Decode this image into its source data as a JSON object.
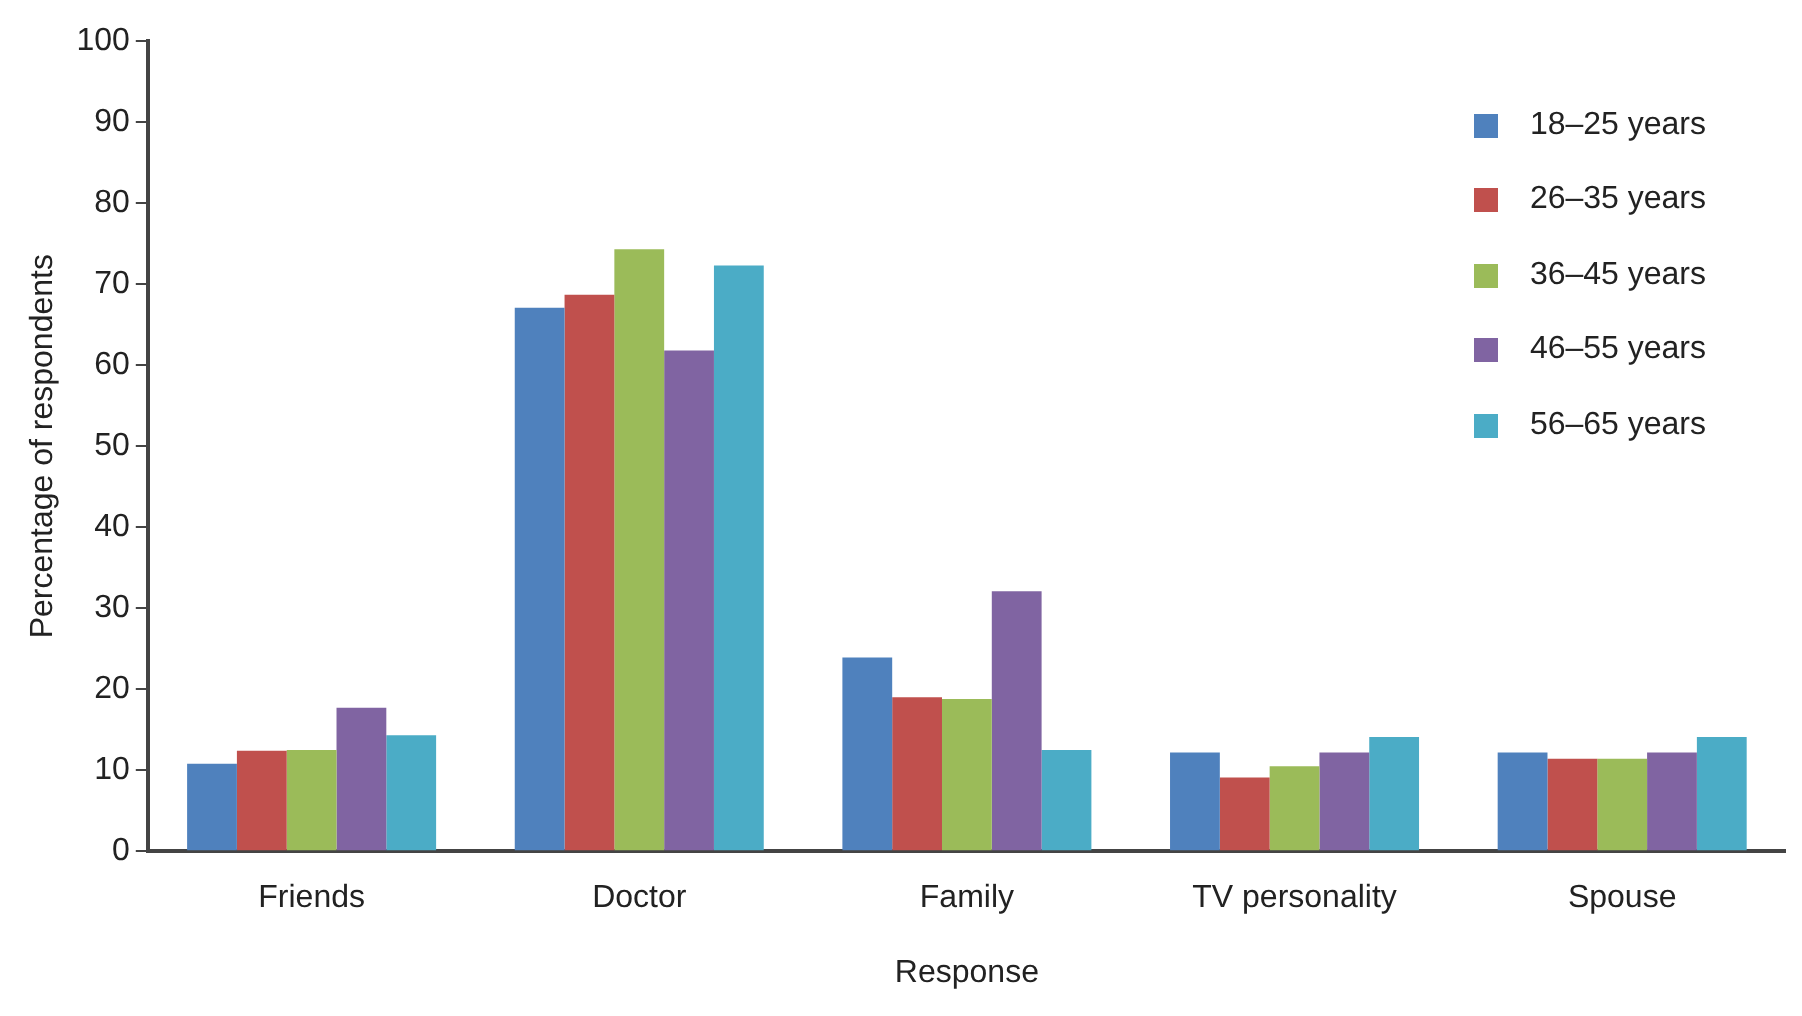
{
  "chart_data": {
    "type": "bar",
    "xlabel": "Response",
    "ylabel": "Percentage of respondents",
    "categories": [
      "Friends",
      "Doctor",
      "Family",
      "TV personality",
      "Spouse"
    ],
    "series": [
      {
        "name": "18–25 years",
        "color": "#4f81bd",
        "values": [
          10.8,
          67.1,
          23.9,
          12.2,
          12.2
        ]
      },
      {
        "name": "26–35 years",
        "color": "#c0504d",
        "values": [
          12.4,
          68.7,
          19.0,
          9.1,
          11.4
        ]
      },
      {
        "name": "36–45 years",
        "color": "#9bbb59",
        "values": [
          12.5,
          74.3,
          18.8,
          10.5,
          11.4
        ]
      },
      {
        "name": "46–55 years",
        "color": "#8064a2",
        "values": [
          17.7,
          61.8,
          32.1,
          12.2,
          12.2
        ]
      },
      {
        "name": "56–65 years",
        "color": "#4bacc6",
        "values": [
          14.3,
          72.3,
          12.5,
          14.1,
          14.1
        ]
      }
    ],
    "ylim": [
      0,
      100
    ],
    "yticks": [
      0,
      10,
      20,
      30,
      40,
      50,
      60,
      70,
      80,
      90,
      100
    ],
    "grid": false,
    "legend": "top right"
  }
}
